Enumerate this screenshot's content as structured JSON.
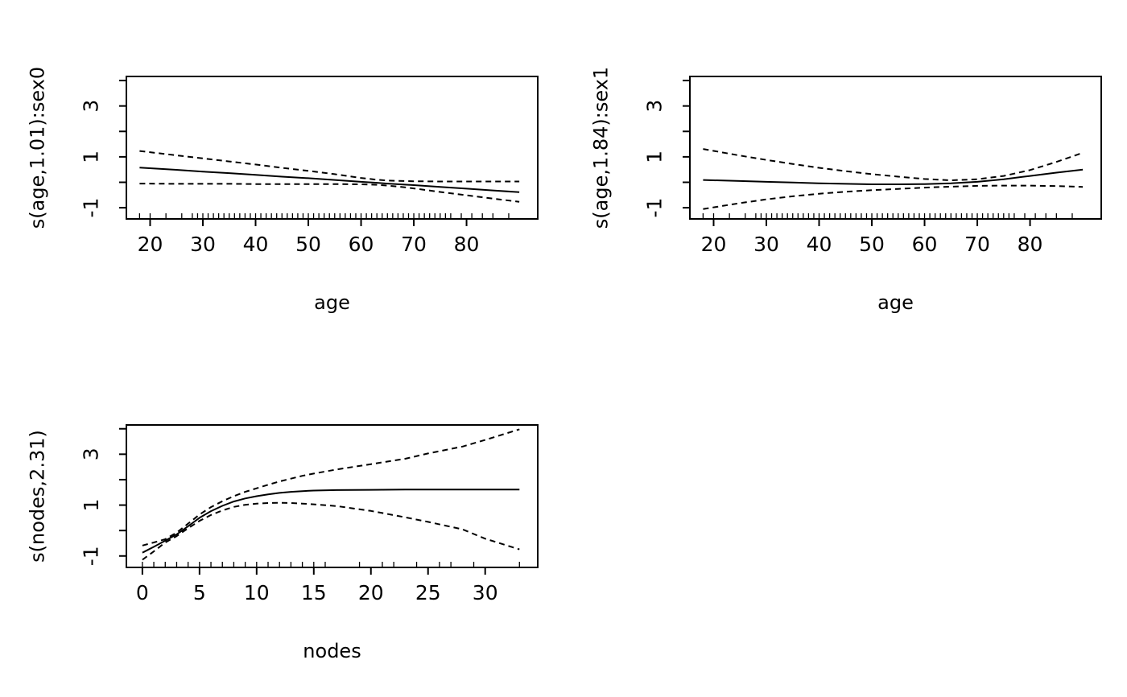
{
  "page": {
    "background": "#ffffff",
    "line_color": "#000000",
    "description": "GAM smooth term plots (plot.gam style), 2x2 grid with three panels"
  },
  "chart_data": [
    {
      "type": "line",
      "title": "",
      "xlabel": "age",
      "ylabel": "s(age,1.01):sex0",
      "xlim": [
        15.5,
        93.5
      ],
      "ylim": [
        -1.44,
        4.16
      ],
      "x_ticks": [
        20,
        30,
        40,
        50,
        60,
        70,
        80
      ],
      "y_ticks": [
        -1,
        0,
        1,
        2,
        3,
        4
      ],
      "y_labeled_ticks": [
        {
          "value": -1,
          "label": "-1"
        },
        {
          "value": 1,
          "label": "1"
        },
        {
          "value": 3,
          "label": "3"
        }
      ],
      "grid": false,
      "legend": null,
      "series": [
        {
          "name": "fit",
          "line": "solid",
          "x": [
            18,
            25,
            30,
            35,
            40,
            45,
            50,
            55,
            60,
            63,
            65,
            68,
            70,
            75,
            80,
            85,
            90
          ],
          "y": [
            0.58,
            0.49,
            0.42,
            0.36,
            0.29,
            0.22,
            0.16,
            0.09,
            0.02,
            -0.02,
            -0.05,
            -0.09,
            -0.11,
            -0.18,
            -0.25,
            -0.32,
            -0.39
          ]
        },
        {
          "name": "upper-ci",
          "line": "dashed",
          "x": [
            18,
            25,
            30,
            35,
            40,
            45,
            50,
            55,
            60,
            63,
            65,
            68,
            70,
            75,
            80,
            85,
            90
          ],
          "y": [
            1.23,
            1.06,
            0.94,
            0.82,
            0.7,
            0.57,
            0.45,
            0.32,
            0.17,
            0.1,
            0.07,
            0.05,
            0.04,
            0.03,
            0.03,
            0.03,
            0.03
          ]
        },
        {
          "name": "lower-ci",
          "line": "dashed",
          "x": [
            18,
            25,
            30,
            35,
            40,
            45,
            50,
            55,
            60,
            63,
            65,
            68,
            70,
            75,
            80,
            85,
            90
          ],
          "y": [
            -0.05,
            -0.06,
            -0.06,
            -0.06,
            -0.07,
            -0.07,
            -0.07,
            -0.07,
            -0.08,
            -0.1,
            -0.13,
            -0.19,
            -0.24,
            -0.38,
            -0.51,
            -0.64,
            -0.77
          ]
        }
      ],
      "rug_x": [
        18,
        20,
        23,
        26,
        28,
        29,
        30,
        31,
        32,
        33,
        34,
        35,
        36,
        37,
        38,
        39,
        40,
        41,
        42,
        43,
        44,
        45,
        46,
        47,
        48,
        49,
        50,
        51,
        52,
        53,
        54,
        55,
        56,
        57,
        58,
        59,
        60,
        61,
        62,
        63,
        64,
        65,
        66,
        67,
        68,
        69,
        70,
        71,
        72,
        73,
        74,
        75,
        76,
        77,
        79,
        81,
        83,
        85,
        88
      ]
    },
    {
      "type": "line",
      "title": "",
      "xlabel": "age",
      "ylabel": "s(age,1.84):sex1",
      "xlim": [
        15.5,
        93.5
      ],
      "ylim": [
        -1.44,
        4.16
      ],
      "x_ticks": [
        20,
        30,
        40,
        50,
        60,
        70,
        80
      ],
      "y_ticks": [
        -1,
        0,
        1,
        2,
        3,
        4
      ],
      "y_labeled_ticks": [
        {
          "value": -1,
          "label": "-1"
        },
        {
          "value": 1,
          "label": "1"
        },
        {
          "value": 3,
          "label": "3"
        }
      ],
      "grid": false,
      "legend": null,
      "series": [
        {
          "name": "fit",
          "line": "solid",
          "x": [
            18,
            25,
            30,
            35,
            40,
            45,
            50,
            55,
            60,
            65,
            70,
            75,
            80,
            85,
            90
          ],
          "y": [
            0.09,
            0.05,
            0.02,
            -0.01,
            -0.04,
            -0.06,
            -0.08,
            -0.08,
            -0.07,
            -0.04,
            0.02,
            0.12,
            0.25,
            0.38,
            0.5
          ]
        },
        {
          "name": "upper-ci",
          "line": "dashed",
          "x": [
            18,
            25,
            30,
            35,
            40,
            45,
            50,
            55,
            60,
            65,
            70,
            75,
            80,
            85,
            90
          ],
          "y": [
            1.31,
            1.05,
            0.88,
            0.72,
            0.57,
            0.44,
            0.32,
            0.22,
            0.13,
            0.08,
            0.12,
            0.25,
            0.48,
            0.8,
            1.16
          ]
        },
        {
          "name": "lower-ci",
          "line": "dashed",
          "x": [
            18,
            25,
            30,
            35,
            40,
            45,
            50,
            55,
            60,
            65,
            70,
            75,
            80,
            85,
            90
          ],
          "y": [
            -1.05,
            -0.82,
            -0.67,
            -0.55,
            -0.45,
            -0.37,
            -0.31,
            -0.26,
            -0.21,
            -0.17,
            -0.14,
            -0.13,
            -0.13,
            -0.15,
            -0.18
          ]
        }
      ],
      "rug_x": [
        18,
        20,
        23,
        26,
        28,
        29,
        30,
        31,
        32,
        33,
        34,
        35,
        36,
        37,
        38,
        39,
        40,
        41,
        42,
        43,
        44,
        45,
        46,
        47,
        48,
        49,
        50,
        51,
        52,
        53,
        54,
        55,
        56,
        57,
        58,
        59,
        60,
        61,
        62,
        63,
        64,
        65,
        66,
        67,
        68,
        69,
        70,
        71,
        72,
        73,
        74,
        75,
        76,
        77,
        79,
        81,
        83,
        85,
        88
      ]
    },
    {
      "type": "line",
      "title": "",
      "xlabel": "nodes",
      "ylabel": "s(nodes,2.31)",
      "xlim": [
        -1.4,
        34.6
      ],
      "ylim": [
        -1.45,
        4.15
      ],
      "x_ticks": [
        0,
        5,
        10,
        15,
        20,
        25,
        30
      ],
      "y_ticks": [
        -1,
        0,
        1,
        2,
        3,
        4
      ],
      "y_labeled_ticks": [
        {
          "value": -1,
          "label": "-1"
        },
        {
          "value": 1,
          "label": "1"
        },
        {
          "value": 3,
          "label": "3"
        }
      ],
      "grid": false,
      "legend": null,
      "series": [
        {
          "name": "fit",
          "line": "solid",
          "x": [
            0,
            1,
            2,
            3,
            4,
            5,
            6,
            7,
            8,
            9,
            10,
            11,
            12,
            13,
            14,
            15,
            17,
            20,
            23,
            25,
            28,
            30,
            33
          ],
          "y": [
            -0.87,
            -0.64,
            -0.4,
            -0.15,
            0.17,
            0.5,
            0.76,
            0.97,
            1.14,
            1.26,
            1.35,
            1.42,
            1.48,
            1.52,
            1.55,
            1.57,
            1.59,
            1.6,
            1.61,
            1.61,
            1.61,
            1.61,
            1.61
          ]
        },
        {
          "name": "upper-ci",
          "line": "dashed",
          "x": [
            0,
            1,
            2,
            3,
            4,
            5,
            6,
            7,
            8,
            9,
            10,
            11,
            12,
            13,
            14,
            15,
            17,
            20,
            23,
            25,
            28,
            30,
            33
          ],
          "y": [
            -0.59,
            -0.47,
            -0.34,
            -0.08,
            0.27,
            0.63,
            0.92,
            1.15,
            1.35,
            1.52,
            1.66,
            1.8,
            1.93,
            2.04,
            2.15,
            2.24,
            2.4,
            2.61,
            2.82,
            3.03,
            3.3,
            3.56,
            3.98
          ]
        },
        {
          "name": "lower-ci",
          "line": "dashed",
          "x": [
            0,
            1,
            2,
            3,
            4,
            5,
            6,
            7,
            8,
            9,
            10,
            11,
            12,
            13,
            14,
            15,
            17,
            20,
            23,
            25,
            28,
            30,
            33
          ],
          "y": [
            -1.15,
            -0.82,
            -0.47,
            -0.22,
            0.09,
            0.38,
            0.61,
            0.79,
            0.93,
            1.01,
            1.06,
            1.08,
            1.09,
            1.08,
            1.06,
            1.03,
            0.96,
            0.77,
            0.52,
            0.34,
            0.05,
            -0.32,
            -0.74
          ]
        }
      ],
      "rug_x": [
        0,
        1,
        2,
        3,
        4,
        5,
        6,
        7,
        8,
        9,
        10,
        11,
        12,
        13,
        14,
        15,
        16,
        19,
        21,
        22,
        24,
        26,
        27,
        29,
        33
      ]
    }
  ]
}
